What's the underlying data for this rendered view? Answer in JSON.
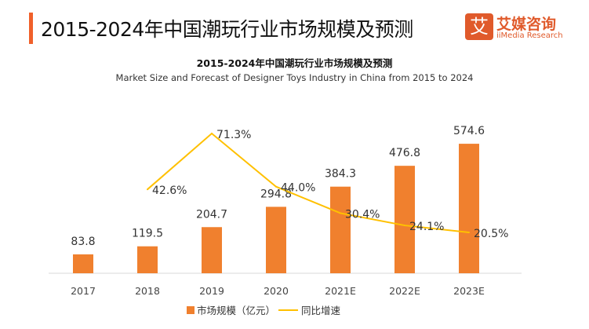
{
  "header": {
    "title": "2015-2024年中国潮玩行业市场规模及预测",
    "logo_cn": "艾媒咨询",
    "logo_en": "iiMedia Research",
    "logo_glyph": "艾"
  },
  "colors": {
    "accent": "#f0602a",
    "bar": "#f0802e",
    "line": "#ffc000"
  },
  "chart_data": {
    "type": "bar+line",
    "title": "2015-2024年中国潮玩行业市场规模及预测",
    "subtitle": "Market Size and Forecast of Designer Toys Industry in China from 2015 to 2024",
    "categories": [
      "2017",
      "2018",
      "2019",
      "2020",
      "2021E",
      "2022E",
      "2023E"
    ],
    "series": [
      {
        "name": "市场规模（亿元）",
        "type": "bar",
        "values": [
          83.8,
          119.5,
          204.7,
          294.8,
          384.3,
          476.8,
          574.6
        ],
        "labels": [
          "83.8",
          "119.5",
          "204.7",
          "294.8",
          "384.3",
          "476.8",
          "574.6"
        ]
      },
      {
        "name": "同比增速",
        "type": "line",
        "values": [
          null,
          42.6,
          71.3,
          44.0,
          30.4,
          24.1,
          20.5
        ],
        "labels": [
          "",
          "42.6%",
          "71.3%",
          "44.0%",
          "30.4%",
          "24.1%",
          "20.5%"
        ]
      }
    ],
    "legend": "bottom",
    "grid": false
  }
}
